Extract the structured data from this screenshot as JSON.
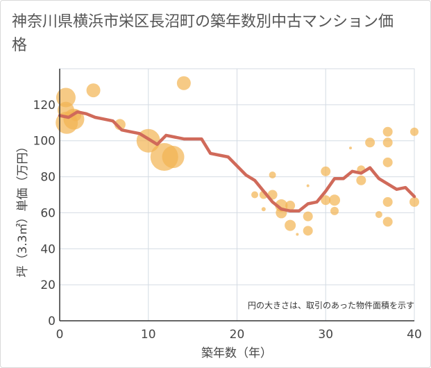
{
  "title": "神奈川県横浜市栄区長沼町の築年数別中古マンション価格",
  "chart_data": {
    "type": "scatter",
    "title": "神奈川県横浜市栄区長沼町の築年数別中古マンション価格",
    "xlabel": "築年数（年）",
    "ylabel": "坪（3.3㎡）単価（万円）",
    "xlim": [
      0,
      40
    ],
    "ylim": [
      0,
      140
    ],
    "x_ticks": [
      "0",
      "10",
      "20",
      "30",
      "40"
    ],
    "y_ticks": [
      "0",
      "20",
      "40",
      "60",
      "80",
      "100",
      "120"
    ],
    "grid": true,
    "note": "円の大きさは、取引のあった物件面積を示す",
    "bubble_color": "#F2B451",
    "line_color": "#D06A5A",
    "series": [
      {
        "type": "bubble",
        "points": [
          {
            "x": 0.7,
            "y": 124,
            "size": 14
          },
          {
            "x": 0.7,
            "y": 117,
            "size": 12
          },
          {
            "x": 0.8,
            "y": 110,
            "size": 16
          },
          {
            "x": 1.6,
            "y": 112,
            "size": 15
          },
          {
            "x": 1.8,
            "y": 114,
            "size": 8
          },
          {
            "x": 3.8,
            "y": 128,
            "size": 10
          },
          {
            "x": 6.8,
            "y": 109,
            "size": 8
          },
          {
            "x": 10.0,
            "y": 100,
            "size": 17
          },
          {
            "x": 11.8,
            "y": 91,
            "size": 20
          },
          {
            "x": 12.8,
            "y": 91,
            "size": 16
          },
          {
            "x": 14.0,
            "y": 132,
            "size": 10
          },
          {
            "x": 22.0,
            "y": 70,
            "size": 5
          },
          {
            "x": 23.0,
            "y": 70,
            "size": 6
          },
          {
            "x": 23.0,
            "y": 62,
            "size": 3
          },
          {
            "x": 24.0,
            "y": 70,
            "size": 7
          },
          {
            "x": 24.0,
            "y": 81,
            "size": 5
          },
          {
            "x": 25.0,
            "y": 64,
            "size": 9
          },
          {
            "x": 25.0,
            "y": 60,
            "size": 8
          },
          {
            "x": 26.0,
            "y": 64,
            "size": 7
          },
          {
            "x": 26.0,
            "y": 53,
            "size": 8
          },
          {
            "x": 26.8,
            "y": 48,
            "size": 2
          },
          {
            "x": 28.0,
            "y": 58,
            "size": 7
          },
          {
            "x": 28.0,
            "y": 50,
            "size": 7
          },
          {
            "x": 28.0,
            "y": 75,
            "size": 2
          },
          {
            "x": 30.0,
            "y": 83,
            "size": 7
          },
          {
            "x": 30.0,
            "y": 67,
            "size": 7
          },
          {
            "x": 31.0,
            "y": 67,
            "size": 8
          },
          {
            "x": 31.0,
            "y": 61,
            "size": 6
          },
          {
            "x": 32.8,
            "y": 96,
            "size": 2
          },
          {
            "x": 34.0,
            "y": 84,
            "size": 6
          },
          {
            "x": 34.0,
            "y": 78,
            "size": 7
          },
          {
            "x": 35.0,
            "y": 99,
            "size": 7
          },
          {
            "x": 36.0,
            "y": 59,
            "size": 5
          },
          {
            "x": 37.0,
            "y": 105,
            "size": 7
          },
          {
            "x": 37.0,
            "y": 99,
            "size": 7
          },
          {
            "x": 37.0,
            "y": 88,
            "size": 7
          },
          {
            "x": 37.0,
            "y": 66,
            "size": 7
          },
          {
            "x": 37.0,
            "y": 55,
            "size": 7
          },
          {
            "x": 40.0,
            "y": 105,
            "size": 6
          },
          {
            "x": 40.0,
            "y": 66,
            "size": 7
          }
        ]
      },
      {
        "type": "line",
        "points": [
          {
            "x": 0,
            "y": 114
          },
          {
            "x": 1,
            "y": 113
          },
          {
            "x": 2,
            "y": 116
          },
          {
            "x": 3,
            "y": 115
          },
          {
            "x": 4,
            "y": 113
          },
          {
            "x": 5,
            "y": 112
          },
          {
            "x": 6,
            "y": 111
          },
          {
            "x": 7,
            "y": 106
          },
          {
            "x": 8,
            "y": 105
          },
          {
            "x": 9,
            "y": 104
          },
          {
            "x": 10,
            "y": 101
          },
          {
            "x": 11,
            "y": 98
          },
          {
            "x": 12,
            "y": 103
          },
          {
            "x": 13,
            "y": 102
          },
          {
            "x": 14,
            "y": 101
          },
          {
            "x": 15,
            "y": 101
          },
          {
            "x": 16,
            "y": 101
          },
          {
            "x": 17,
            "y": 93
          },
          {
            "x": 18,
            "y": 92
          },
          {
            "x": 19,
            "y": 91
          },
          {
            "x": 20,
            "y": 86
          },
          {
            "x": 21,
            "y": 81
          },
          {
            "x": 22,
            "y": 78
          },
          {
            "x": 23,
            "y": 72
          },
          {
            "x": 24,
            "y": 66
          },
          {
            "x": 25,
            "y": 62
          },
          {
            "x": 26,
            "y": 61
          },
          {
            "x": 27,
            "y": 61
          },
          {
            "x": 28,
            "y": 65
          },
          {
            "x": 29,
            "y": 66
          },
          {
            "x": 30,
            "y": 72
          },
          {
            "x": 31,
            "y": 79
          },
          {
            "x": 32,
            "y": 79
          },
          {
            "x": 33,
            "y": 83
          },
          {
            "x": 34,
            "y": 82
          },
          {
            "x": 35,
            "y": 85
          },
          {
            "x": 36,
            "y": 79
          },
          {
            "x": 37,
            "y": 76
          },
          {
            "x": 38,
            "y": 73
          },
          {
            "x": 39,
            "y": 74
          },
          {
            "x": 40,
            "y": 69
          }
        ]
      }
    ]
  }
}
